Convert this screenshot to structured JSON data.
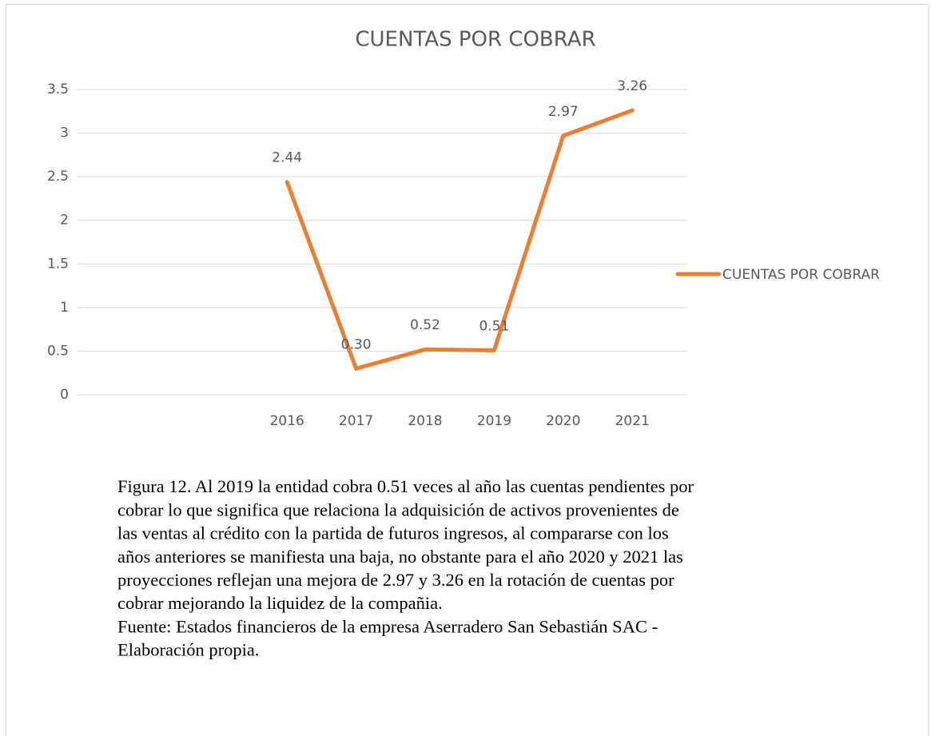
{
  "chart_data": {
    "type": "line",
    "title": "CUENTAS POR COBRAR",
    "categories": [
      null,
      null,
      null,
      "2016",
      "2017",
      "2018",
      "2019",
      "2020",
      "2021"
    ],
    "series": [
      {
        "name": "CUENTAS POR COBRAR",
        "color": "#ed7d31",
        "values": [
          null,
          null,
          null,
          2.44,
          0.3,
          0.52,
          0.51,
          2.97,
          3.26
        ],
        "value_labels": [
          null,
          null,
          null,
          "2.44",
          "0.30",
          "0.52",
          "0.51",
          "2.97",
          "3.26"
        ]
      }
    ],
    "ylim": [
      0,
      3.5
    ],
    "yticks": [
      0,
      0.5,
      1,
      1.5,
      2,
      2.5,
      3,
      3.5
    ],
    "grid": true,
    "legend": "right"
  },
  "caption": [
    "Figura 12. Al 2019 la entidad cobra 0.51 veces al año las cuentas pendientes por",
    "cobrar lo que significa que relaciona la adquisición de activos provenientes de",
    "las ventas al crédito con la partida de futuros ingresos, al compararse con los",
    "años anteriores se manifiesta una baja, no obstante para el año 2020 y 2021 las",
    "proyecciones reflejan una mejora de 2.97 y 3.26 en la rotación de cuentas por",
    "cobrar mejorando la liquidez de la compañia."
  ],
  "source": [
    "Fuente: Estados financieros de la empresa Aserradero San Sebastián SAC -",
    "Elaboración propia."
  ]
}
